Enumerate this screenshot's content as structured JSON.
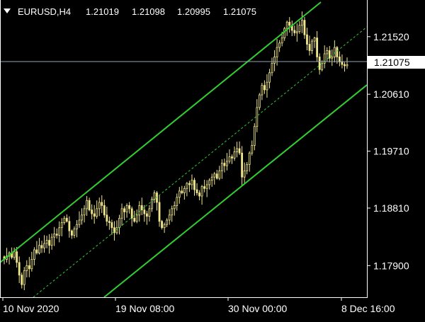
{
  "header": {
    "menu_icon": "triangle-down-icon",
    "symbol": "EURUSD,H4",
    "open": "1.21019",
    "high": "1.21098",
    "low": "1.20995",
    "close": "1.21075"
  },
  "colors": {
    "background": "#000000",
    "frame": "#ffffff",
    "candle": "#f0e68c",
    "channel": "#32cd32",
    "price_line": "#8fa3b8",
    "price_label_bg": "#ffffff",
    "price_label_text": "#000000"
  },
  "chart_data": {
    "type": "candlestick",
    "symbol": "EURUSD",
    "timeframe": "H4",
    "ylim": [
      1.174,
      1.221
    ],
    "yticks": [
      "1.21520",
      "1.20610",
      "1.19710",
      "1.18810",
      "1.17900"
    ],
    "xticks": [
      "10 Nov 2020",
      "19 Nov 08:00",
      "30 Nov 00:00",
      "8 Dec 16:00"
    ],
    "current_price": "1.21075",
    "candles_close": [
      1.18,
      1.1805,
      1.181,
      1.1803,
      1.1812,
      1.1795,
      1.1775,
      1.176,
      1.1782,
      1.179,
      1.1785,
      1.18,
      1.1815,
      1.181,
      1.1822,
      1.1818,
      1.1825,
      1.183,
      1.1822,
      1.1835,
      1.184,
      1.1838,
      1.185,
      1.1858,
      1.1865,
      1.186,
      1.1845,
      1.1838,
      1.1848,
      1.1855,
      1.1862,
      1.187,
      1.188,
      1.1893,
      1.1878,
      1.1872,
      1.1868,
      1.188,
      1.189,
      1.1885,
      1.187,
      1.186,
      1.1858,
      1.185,
      1.1842,
      1.185,
      1.1865,
      1.188,
      1.1875,
      1.1885,
      1.188,
      1.1865,
      1.186,
      1.187,
      1.1885,
      1.1878,
      1.1872,
      1.1868,
      1.188,
      1.1895,
      1.1905,
      1.189,
      1.186,
      1.185,
      1.1855,
      1.1862,
      1.187,
      1.188,
      1.1885,
      1.1898,
      1.1908,
      1.1905,
      1.1912,
      1.192,
      1.1918,
      1.1925,
      1.191,
      1.1905,
      1.19,
      1.1915,
      1.1912,
      1.1918,
      1.1925,
      1.193,
      1.1935,
      1.1928,
      1.194,
      1.1952,
      1.1948,
      1.1955,
      1.1962,
      1.196,
      1.197,
      1.1975,
      1.1968,
      1.193,
      1.194,
      1.195,
      1.1968,
      1.198,
      1.201,
      1.204,
      1.206,
      1.2075,
      1.2068,
      1.208,
      1.2095,
      1.211,
      1.212,
      1.2135,
      1.2142,
      1.215,
      1.2165,
      1.2175,
      1.217,
      1.2162,
      1.2158,
      1.216,
      1.217,
      1.2178,
      1.2155,
      1.214,
      1.213,
      1.2145,
      1.215,
      1.212,
      1.21,
      1.211,
      1.2125,
      1.213,
      1.2118,
      1.212,
      1.2135,
      1.212,
      1.2112,
      1.2108,
      1.2106,
      1.21075
    ]
  }
}
